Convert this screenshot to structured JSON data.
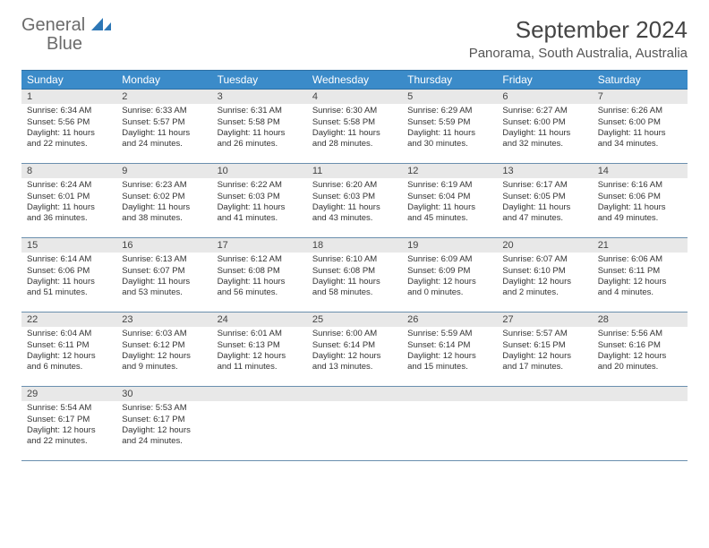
{
  "logo": {
    "text1": "General",
    "text2": "Blue"
  },
  "title": "September 2024",
  "location": "Panorama, South Australia, Australia",
  "colors": {
    "header_bg": "#3b8bc9",
    "header_text": "#ffffff",
    "daynum_bg": "#e8e8e8",
    "border": "#6a8fae",
    "body_text": "#333333",
    "logo_gray": "#6b6b6b",
    "logo_blue": "#2d77b6"
  },
  "dayNames": [
    "Sunday",
    "Monday",
    "Tuesday",
    "Wednesday",
    "Thursday",
    "Friday",
    "Saturday"
  ],
  "weeks": [
    [
      {
        "n": "1",
        "sr": "6:34 AM",
        "ss": "5:56 PM",
        "dl": "11 hours and 22 minutes."
      },
      {
        "n": "2",
        "sr": "6:33 AM",
        "ss": "5:57 PM",
        "dl": "11 hours and 24 minutes."
      },
      {
        "n": "3",
        "sr": "6:31 AM",
        "ss": "5:58 PM",
        "dl": "11 hours and 26 minutes."
      },
      {
        "n": "4",
        "sr": "6:30 AM",
        "ss": "5:58 PM",
        "dl": "11 hours and 28 minutes."
      },
      {
        "n": "5",
        "sr": "6:29 AM",
        "ss": "5:59 PM",
        "dl": "11 hours and 30 minutes."
      },
      {
        "n": "6",
        "sr": "6:27 AM",
        "ss": "6:00 PM",
        "dl": "11 hours and 32 minutes."
      },
      {
        "n": "7",
        "sr": "6:26 AM",
        "ss": "6:00 PM",
        "dl": "11 hours and 34 minutes."
      }
    ],
    [
      {
        "n": "8",
        "sr": "6:24 AM",
        "ss": "6:01 PM",
        "dl": "11 hours and 36 minutes."
      },
      {
        "n": "9",
        "sr": "6:23 AM",
        "ss": "6:02 PM",
        "dl": "11 hours and 38 minutes."
      },
      {
        "n": "10",
        "sr": "6:22 AM",
        "ss": "6:03 PM",
        "dl": "11 hours and 41 minutes."
      },
      {
        "n": "11",
        "sr": "6:20 AM",
        "ss": "6:03 PM",
        "dl": "11 hours and 43 minutes."
      },
      {
        "n": "12",
        "sr": "6:19 AM",
        "ss": "6:04 PM",
        "dl": "11 hours and 45 minutes."
      },
      {
        "n": "13",
        "sr": "6:17 AM",
        "ss": "6:05 PM",
        "dl": "11 hours and 47 minutes."
      },
      {
        "n": "14",
        "sr": "6:16 AM",
        "ss": "6:06 PM",
        "dl": "11 hours and 49 minutes."
      }
    ],
    [
      {
        "n": "15",
        "sr": "6:14 AM",
        "ss": "6:06 PM",
        "dl": "11 hours and 51 minutes."
      },
      {
        "n": "16",
        "sr": "6:13 AM",
        "ss": "6:07 PM",
        "dl": "11 hours and 53 minutes."
      },
      {
        "n": "17",
        "sr": "6:12 AM",
        "ss": "6:08 PM",
        "dl": "11 hours and 56 minutes."
      },
      {
        "n": "18",
        "sr": "6:10 AM",
        "ss": "6:08 PM",
        "dl": "11 hours and 58 minutes."
      },
      {
        "n": "19",
        "sr": "6:09 AM",
        "ss": "6:09 PM",
        "dl": "12 hours and 0 minutes."
      },
      {
        "n": "20",
        "sr": "6:07 AM",
        "ss": "6:10 PM",
        "dl": "12 hours and 2 minutes."
      },
      {
        "n": "21",
        "sr": "6:06 AM",
        "ss": "6:11 PM",
        "dl": "12 hours and 4 minutes."
      }
    ],
    [
      {
        "n": "22",
        "sr": "6:04 AM",
        "ss": "6:11 PM",
        "dl": "12 hours and 6 minutes."
      },
      {
        "n": "23",
        "sr": "6:03 AM",
        "ss": "6:12 PM",
        "dl": "12 hours and 9 minutes."
      },
      {
        "n": "24",
        "sr": "6:01 AM",
        "ss": "6:13 PM",
        "dl": "12 hours and 11 minutes."
      },
      {
        "n": "25",
        "sr": "6:00 AM",
        "ss": "6:14 PM",
        "dl": "12 hours and 13 minutes."
      },
      {
        "n": "26",
        "sr": "5:59 AM",
        "ss": "6:14 PM",
        "dl": "12 hours and 15 minutes."
      },
      {
        "n": "27",
        "sr": "5:57 AM",
        "ss": "6:15 PM",
        "dl": "12 hours and 17 minutes."
      },
      {
        "n": "28",
        "sr": "5:56 AM",
        "ss": "6:16 PM",
        "dl": "12 hours and 20 minutes."
      }
    ],
    [
      {
        "n": "29",
        "sr": "5:54 AM",
        "ss": "6:17 PM",
        "dl": "12 hours and 22 minutes."
      },
      {
        "n": "30",
        "sr": "5:53 AM",
        "ss": "6:17 PM",
        "dl": "12 hours and 24 minutes."
      },
      null,
      null,
      null,
      null,
      null
    ]
  ],
  "labels": {
    "sunrise": "Sunrise:",
    "sunset": "Sunset:",
    "daylight": "Daylight:"
  }
}
